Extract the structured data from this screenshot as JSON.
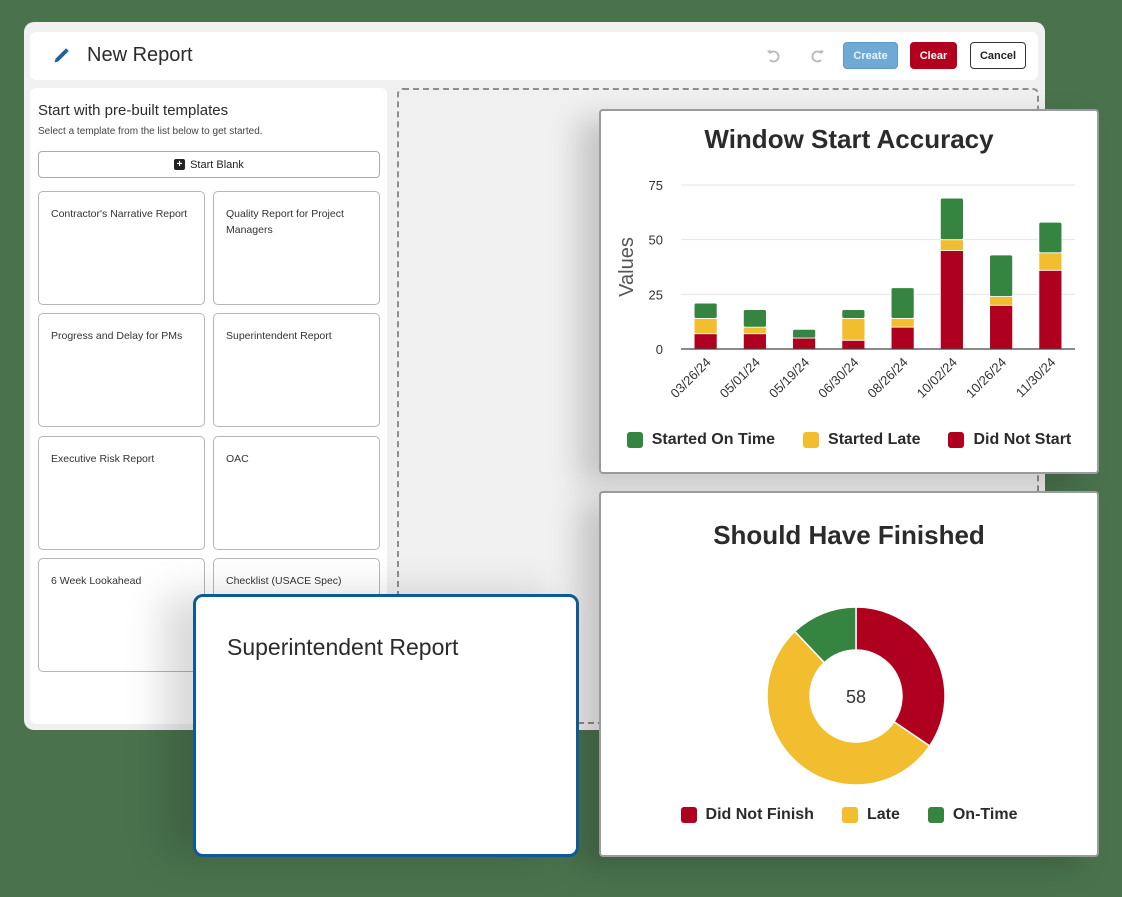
{
  "header": {
    "title": "New Report",
    "icons": [
      "pencil-icon",
      "undo-icon",
      "redo-icon"
    ],
    "buttons": {
      "create": "Create",
      "clear": "Clear",
      "cancel": "Cancel"
    }
  },
  "templates": {
    "title": "Start with pre-built templates",
    "subtitle": "Select a template from the list below to get started.",
    "start_blank": "Start Blank",
    "items": [
      {
        "label": "Contractor's Narrative Report"
      },
      {
        "label": "Quality Report for Project Managers"
      },
      {
        "label": "Progress and Delay for PMs"
      },
      {
        "label": "Superintendent Report"
      },
      {
        "label": "Executive Risk Report"
      },
      {
        "label": "OAC"
      },
      {
        "label": "6 Week Lookahead"
      },
      {
        "label": "Checklist (USACE Spec)"
      }
    ]
  },
  "preview_card": {
    "title": "Superintendent Report"
  },
  "colors": {
    "green": "#35843f",
    "yellow": "#f2be2f",
    "red": "#b0001f",
    "brand_blue": "#0f5a94",
    "background": "#4a734d"
  },
  "chart_data": [
    {
      "type": "bar",
      "stacked": true,
      "title": "Window Start Accuracy",
      "xlabel": "",
      "ylabel": "Values",
      "ylim": [
        0,
        75
      ],
      "yticks": [
        0,
        25,
        50,
        75
      ],
      "grid": true,
      "legend_position": "bottom",
      "categories": [
        "03/26/24",
        "05/01/24",
        "05/19/24",
        "06/30/24",
        "08/26/24",
        "10/02/24",
        "10/26/24",
        "11/30/24"
      ],
      "series": [
        {
          "name": "Did Not Start",
          "color": "#b0001f",
          "values": [
            7,
            7,
            5,
            4,
            10,
            45,
            20,
            36
          ]
        },
        {
          "name": "Started Late",
          "color": "#f2be2f",
          "values": [
            7,
            3,
            0,
            10,
            4,
            5,
            4,
            8
          ]
        },
        {
          "name": "Started On Time",
          "color": "#35843f",
          "values": [
            7,
            8,
            4,
            4,
            14,
            19,
            19,
            14
          ]
        }
      ],
      "legend": [
        "Started On Time",
        "Started Late",
        "Did Not Start"
      ]
    },
    {
      "type": "pie",
      "donut": true,
      "title": "Should Have Finished",
      "center_label": "58",
      "total": 58,
      "legend_position": "bottom",
      "categories": [
        "Did Not Finish",
        "Late",
        "On-Time"
      ],
      "values": [
        20,
        31,
        7
      ],
      "colors": [
        "#b0001f",
        "#f2be2f",
        "#35843f"
      ]
    }
  ]
}
